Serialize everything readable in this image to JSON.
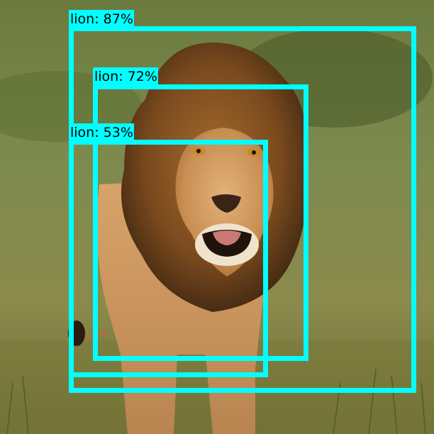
{
  "image": {
    "subject": "lion walking toward camera in grassy savanna",
    "background_color": "#6f7f4a"
  },
  "detections": {
    "box_color": "#00ffff",
    "label_color": "#000000",
    "items": [
      {
        "label": "lion: 87%",
        "class": "lion",
        "score": 0.87
      },
      {
        "label": "lion: 72%",
        "class": "lion",
        "score": 0.72
      },
      {
        "label": "lion: 53%",
        "class": "lion",
        "score": 0.53
      }
    ]
  }
}
